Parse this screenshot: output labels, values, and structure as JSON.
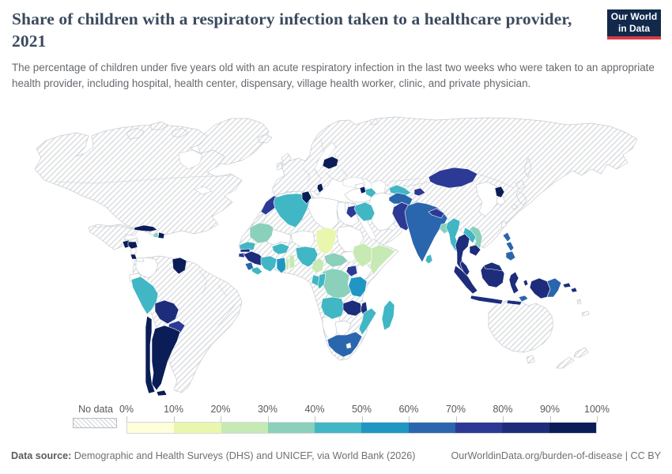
{
  "header": {
    "title": "Share of children with a respiratory infection taken to a healthcare provider, 2021",
    "subtitle": "The percentage of children under five years old with an acute respiratory infection in the last two weeks who were taken to an appropriate health provider, including hospital, health center, dispensary, village health worker, clinic, and private physician.",
    "logo_line1": "Our World",
    "logo_line2": "in Data",
    "logo_bg": "#12294b",
    "logo_accent": "#dc3a45"
  },
  "footer": {
    "source_label": "Data source:",
    "source_text": " Demographic and Health Surveys (DHS) and UNICEF, via World Bank (2026)",
    "link_text": "OurWorldinData.org/burden-of-disease | CC BY"
  },
  "chart_data": {
    "type": "choropleth_map",
    "title": "Share of children with a respiratory infection taken to a healthcare provider",
    "year": 2021,
    "unit": "%",
    "no_data_label": "No data",
    "legend_position": "bottom",
    "tick_labels": [
      "0%",
      "10%",
      "20%",
      "30%",
      "40%",
      "50%",
      "60%",
      "70%",
      "80%",
      "90%",
      "100%"
    ],
    "bins": [
      {
        "label": "0-10%",
        "color": "#ffffd9"
      },
      {
        "label": "10-20%",
        "color": "#e9f6ad"
      },
      {
        "label": "20-30%",
        "color": "#c7e9b4"
      },
      {
        "label": "30-40%",
        "color": "#8ad0bb"
      },
      {
        "label": "40-50%",
        "color": "#41b6c4"
      },
      {
        "label": "50-60%",
        "color": "#2096c3"
      },
      {
        "label": "60-70%",
        "color": "#2a66ad"
      },
      {
        "label": "70-80%",
        "color": "#2c3a96"
      },
      {
        "label": "80-90%",
        "color": "#1d2d7c"
      },
      {
        "label": "90-100%",
        "color": "#0b1d57"
      }
    ],
    "countries": [
      {
        "name": "Cuba",
        "bin": "90-100%"
      },
      {
        "name": "Dominican Republic",
        "bin": "90-100%"
      },
      {
        "name": "Haiti",
        "bin": "30-40%"
      },
      {
        "name": "Guatemala",
        "bin": "90-100%"
      },
      {
        "name": "Honduras",
        "bin": "90-100%"
      },
      {
        "name": "Costa Rica",
        "bin": "90-100%"
      },
      {
        "name": "Guyana",
        "bin": "90-100%"
      },
      {
        "name": "Peru",
        "bin": "40-50%"
      },
      {
        "name": "Bolivia",
        "bin": "80-90%"
      },
      {
        "name": "Paraguay",
        "bin": "70-80%"
      },
      {
        "name": "Argentina",
        "bin": "90-100%"
      },
      {
        "name": "Chile",
        "bin": "90-100%"
      },
      {
        "name": "Morocco",
        "bin": "70-80%"
      },
      {
        "name": "Algeria",
        "bin": "40-50%"
      },
      {
        "name": "Tunisia",
        "bin": "90-100%"
      },
      {
        "name": "Mauritania",
        "bin": "30-40%"
      },
      {
        "name": "Senegal",
        "bin": "40-50%"
      },
      {
        "name": "Gambia",
        "bin": "80-90%"
      },
      {
        "name": "Guinea-Bissau",
        "bin": "70-80%"
      },
      {
        "name": "Guinea",
        "bin": "80-90%"
      },
      {
        "name": "Sierra Leone",
        "bin": "60-70%"
      },
      {
        "name": "Liberia",
        "bin": "40-50%"
      },
      {
        "name": "Cote d'Ivoire",
        "bin": "40-50%"
      },
      {
        "name": "Ghana",
        "bin": "50-60%"
      },
      {
        "name": "Togo",
        "bin": "20-30%"
      },
      {
        "name": "Benin",
        "bin": "20-30%"
      },
      {
        "name": "Burkina Faso",
        "bin": "40-50%"
      },
      {
        "name": "Nigeria",
        "bin": "40-50%"
      },
      {
        "name": "Chad",
        "bin": "10-20%"
      },
      {
        "name": "Cameroon",
        "bin": "20-30%"
      },
      {
        "name": "Central African Republic",
        "bin": "30-40%"
      },
      {
        "name": "Ethiopia",
        "bin": "20-30%"
      },
      {
        "name": "Somalia",
        "bin": "20-30%"
      },
      {
        "name": "Uganda",
        "bin": "70-80%"
      },
      {
        "name": "Tanzania",
        "bin": "50-60%"
      },
      {
        "name": "DR Congo",
        "bin": "30-40%"
      },
      {
        "name": "Congo",
        "bin": "40-50%"
      },
      {
        "name": "Gabon",
        "bin": "40-50%"
      },
      {
        "name": "Angola",
        "bin": "40-50%"
      },
      {
        "name": "Zambia",
        "bin": "80-90%"
      },
      {
        "name": "Malawi",
        "bin": "80-90%"
      },
      {
        "name": "Mozambique",
        "bin": "40-50%"
      },
      {
        "name": "South Africa",
        "bin": "60-70%"
      },
      {
        "name": "Lesotho-skip",
        "bin": "60-70%"
      },
      {
        "name": "Madagascar",
        "bin": "40-50%"
      },
      {
        "name": "Belarus",
        "bin": "90-100%"
      },
      {
        "name": "Albania",
        "bin": "90-100%"
      },
      {
        "name": "Armenia",
        "bin": "90-100%"
      },
      {
        "name": "Azerbaijan",
        "bin": "40-50%"
      },
      {
        "name": "Jordan",
        "bin": "70-80%"
      },
      {
        "name": "Iraq",
        "bin": "40-50%"
      },
      {
        "name": "Turkmenistan",
        "bin": "40-50%"
      },
      {
        "name": "Tajikistan",
        "bin": "70-80%"
      },
      {
        "name": "Afghanistan",
        "bin": "60-70%"
      },
      {
        "name": "Pakistan",
        "bin": "70-80%"
      },
      {
        "name": "India",
        "bin": "60-70%"
      },
      {
        "name": "Nepal",
        "bin": "70-80%"
      },
      {
        "name": "Bangladesh",
        "bin": "30-40%"
      },
      {
        "name": "Sri Lanka",
        "bin": "40-50%"
      },
      {
        "name": "Myanmar",
        "bin": "40-50%"
      },
      {
        "name": "Thailand",
        "bin": "80-90%"
      },
      {
        "name": "Laos",
        "bin": "40-50%"
      },
      {
        "name": "Vietnam",
        "bin": "30-40%"
      },
      {
        "name": "Cambodia",
        "bin": "80-90%"
      },
      {
        "name": "Malaysia",
        "bin": "80-90%"
      },
      {
        "name": "Indonesia",
        "bin": "80-90%"
      },
      {
        "name": "Timor-Leste",
        "bin": "60-70%"
      },
      {
        "name": "Philippines",
        "bin": "60-70%"
      },
      {
        "name": "Papua New Guinea",
        "bin": "60-70%"
      },
      {
        "name": "Solomon Islands",
        "bin": "80-90%"
      },
      {
        "name": "Mongolia",
        "bin": "70-80%"
      },
      {
        "name": "North Korea",
        "bin": "90-100%"
      }
    ]
  }
}
